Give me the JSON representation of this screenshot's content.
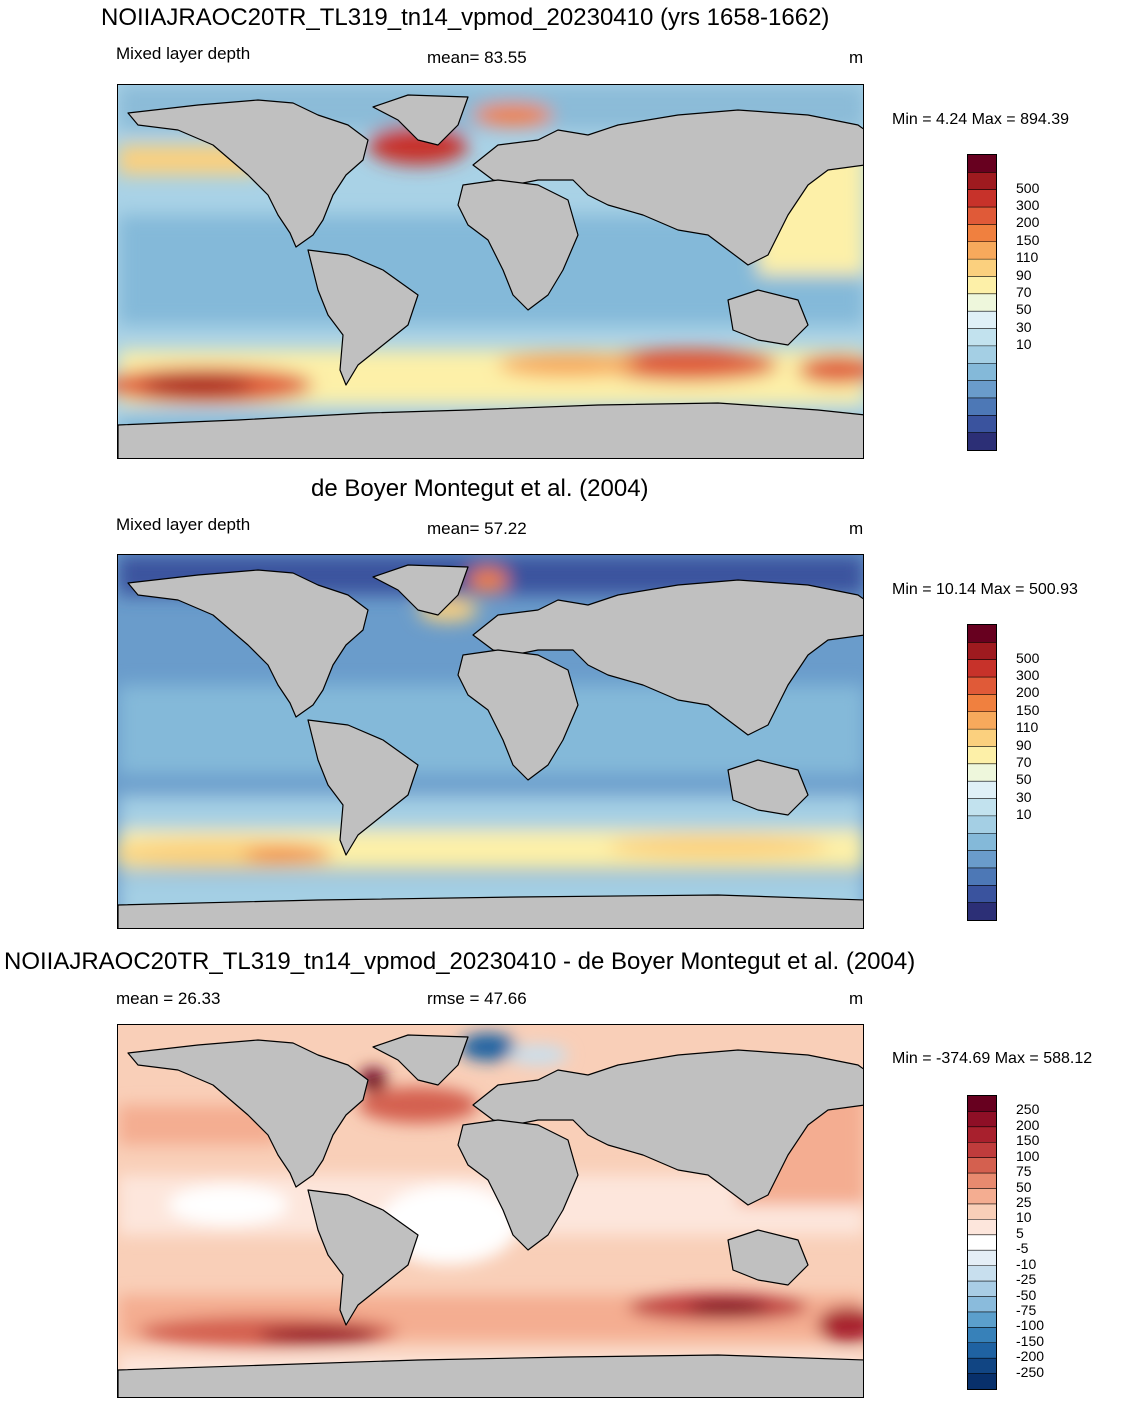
{
  "panels": [
    {
      "title": "NOIIAJRAOC20TR_TL319_tn14_vpmod_20230410 (yrs 1658-1662)",
      "left_label": "Mixed layer depth",
      "center_label": "mean=  83.55",
      "unit": "m",
      "minmax": "Min =   4.24 Max = 894.39",
      "colorbar": {
        "labels": [
          "500",
          "300",
          "200",
          "150",
          "110",
          "90",
          "70",
          "50",
          "30",
          "10"
        ],
        "colors": [
          "#67001f",
          "#9e1a1f",
          "#c7322a",
          "#e05a38",
          "#f0803f",
          "#f7a95c",
          "#fbd07e",
          "#fdf0a8",
          "#eef7dc",
          "#dff0f7",
          "#c2e2ee",
          "#a4cfe4",
          "#84b9d9",
          "#6a9ccb",
          "#4d78b6",
          "#3a539e",
          "#2c2f76"
        ]
      }
    },
    {
      "title": "de Boyer Montegut et al. (2004)",
      "left_label": "Mixed layer depth",
      "center_label": "mean=  57.22",
      "unit": "m",
      "minmax": "Min =  10.14 Max = 500.93",
      "colorbar": {
        "labels": [
          "500",
          "300",
          "200",
          "150",
          "110",
          "90",
          "70",
          "50",
          "30",
          "10"
        ],
        "colors": [
          "#67001f",
          "#9e1a1f",
          "#c7322a",
          "#e05a38",
          "#f0803f",
          "#f7a95c",
          "#fbd07e",
          "#fdf0a8",
          "#eef7dc",
          "#dff0f7",
          "#c2e2ee",
          "#a4cfe4",
          "#84b9d9",
          "#6a9ccb",
          "#4d78b6",
          "#3a539e",
          "#2c2f76"
        ]
      }
    },
    {
      "title": "NOIIAJRAOC20TR_TL319_tn14_vpmod_20230410 - de Boyer Montegut et al. (2004)",
      "left_label": "mean =  26.33",
      "center_label": "rmse =  47.66",
      "unit": "m",
      "minmax": "Min = -374.69 Max = 588.12",
      "colorbar": {
        "labels": [
          "250",
          "200",
          "150",
          "100",
          "75",
          "50",
          "25",
          "10",
          "5",
          "-5",
          "-10",
          "-25",
          "-50",
          "-75",
          "-100",
          "-150",
          "-200",
          "-250"
        ],
        "colors": [
          "#67001f",
          "#8e0f26",
          "#a8202d",
          "#bf3c3c",
          "#d4604f",
          "#e88a6f",
          "#f4ad91",
          "#f9cfb8",
          "#fde6dc",
          "#ffffff",
          "#e4eef6",
          "#c8dfee",
          "#a9cde5",
          "#8abbdc",
          "#5b9fcc",
          "#3781b9",
          "#1f62a2",
          "#114583",
          "#08306b"
        ]
      }
    }
  ]
}
